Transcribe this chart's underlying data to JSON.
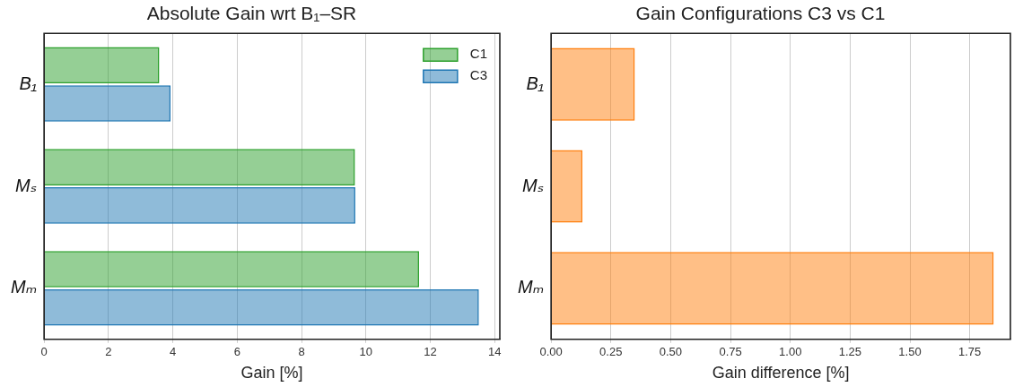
{
  "chart_data": [
    {
      "type": "bar",
      "orientation": "horizontal",
      "title": "Absolute Gain wrt B₁–SR",
      "xlabel": "Gain [%]",
      "categories": [
        "B₁",
        "Mₛ",
        "Mₘ"
      ],
      "series": [
        {
          "name": "C1",
          "color": "#2ca02c",
          "values": [
            3.58,
            9.66,
            11.65
          ]
        },
        {
          "name": "C3",
          "color": "#1f77b4",
          "values": [
            3.93,
            9.67,
            13.51
          ]
        }
      ],
      "xlim": [
        0,
        14.16
      ],
      "xticks": [
        0,
        2,
        4,
        6,
        8,
        10,
        12,
        14
      ],
      "grid": "x",
      "legend": "top right"
    },
    {
      "type": "bar",
      "orientation": "horizontal",
      "title": "Gain Configurations C3 vs C1",
      "xlabel": "Gain difference [%]",
      "categories": [
        "B₁",
        "Mₛ",
        "Mₘ"
      ],
      "series": [
        {
          "color": "#ff7f0e",
          "values": [
            0.35,
            0.131,
            1.85
          ]
        }
      ],
      "xlim": [
        0,
        1.92
      ],
      "xticks": [
        {
          "value": 0,
          "label": "0.00"
        },
        {
          "value": 0.25,
          "label": "0.25"
        },
        {
          "value": 0.5,
          "label": "0.50"
        },
        {
          "value": 0.75,
          "label": "0.75"
        },
        {
          "value": 1,
          "label": "1.00"
        },
        {
          "value": 1.25,
          "label": "1.25"
        },
        {
          "value": 1.5,
          "label": "1.50"
        },
        {
          "value": 1.75,
          "label": "1.75"
        }
      ],
      "grid": "x"
    }
  ]
}
